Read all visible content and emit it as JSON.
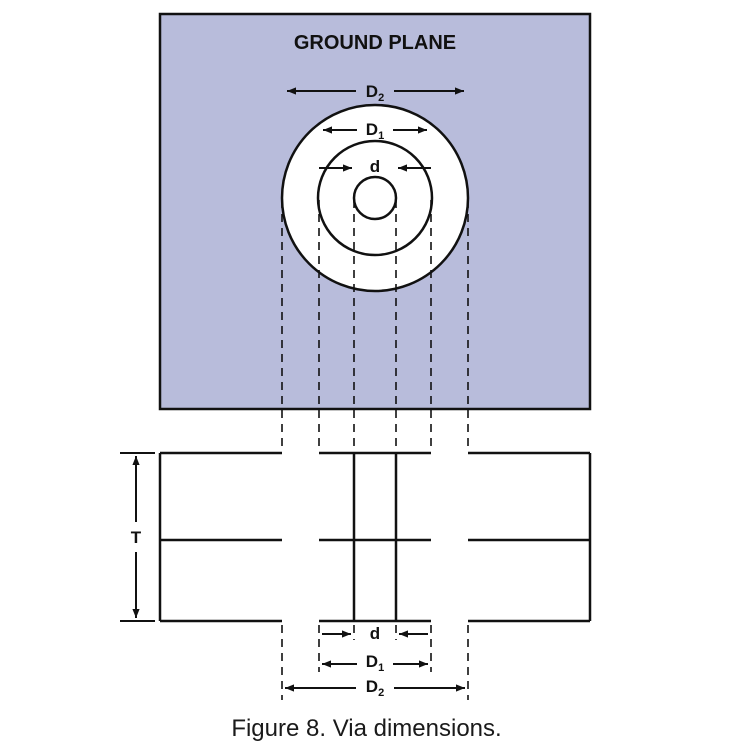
{
  "ground_plane": {
    "title": "GROUND PLANE",
    "fill_color": "#b8bcdb",
    "hole_fill": "#ffffff"
  },
  "labels": {
    "d": "d",
    "D1_base": "D",
    "D1_sub": "1",
    "D2_base": "D",
    "D2_sub": "2",
    "T": "T"
  },
  "caption": "Figure 8. Via dimensions."
}
